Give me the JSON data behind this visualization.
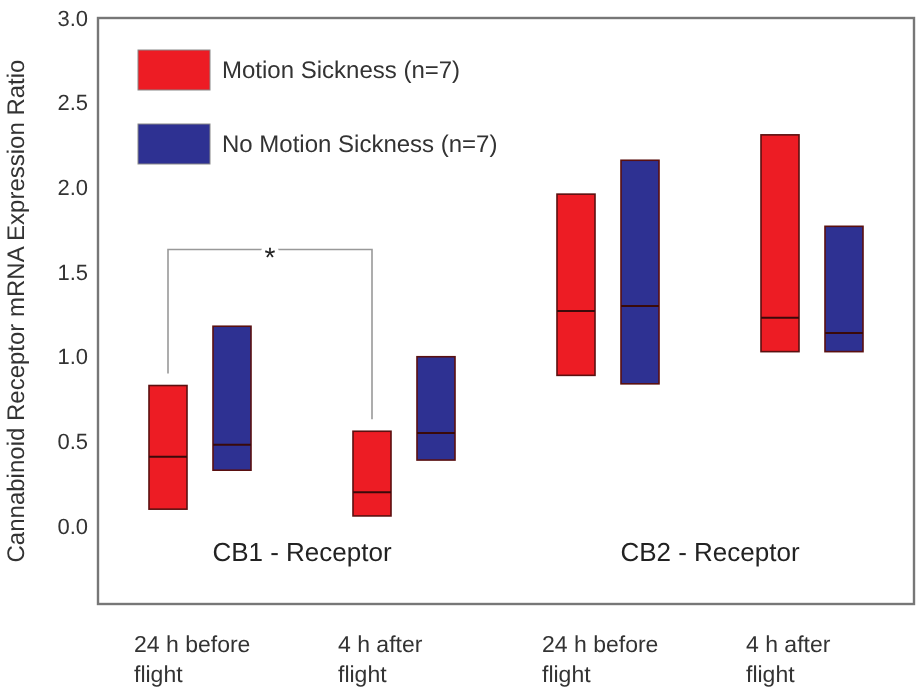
{
  "chart_data": {
    "type": "box",
    "ylabel": "Cannabinoid Receptor mRNA Expression Ratio",
    "categories": [
      "24 h before flight",
      "4 h after flight",
      "24 h before flight",
      "4 h after flight"
    ],
    "ylim": [
      -0.46,
      3.0
    ],
    "yticks": [
      {
        "value": 0,
        "label": "0.0"
      },
      {
        "value": 0.5,
        "label": "0.5"
      },
      {
        "value": 1,
        "label": "1.0"
      },
      {
        "value": 1.5,
        "label": "1.5"
      },
      {
        "value": 2,
        "label": "2.0"
      },
      {
        "value": 2.5,
        "label": "2.5"
      },
      {
        "value": 3,
        "label": "3.0"
      }
    ],
    "legend": "top left",
    "grid": false,
    "series": [
      {
        "name": "Motion Sickness (n=7)",
        "color": "#ed1c24",
        "boxes": [
          {
            "low": 0.1,
            "q1": 0.1,
            "median": 0.41,
            "q3": 0.83,
            "high": 0.83
          },
          {
            "low": 0.06,
            "q1": 0.06,
            "median": 0.2,
            "q3": 0.56,
            "high": 0.56
          },
          {
            "low": 0.89,
            "q1": 0.89,
            "median": 1.27,
            "q3": 1.96,
            "high": 1.96
          },
          {
            "low": 1.03,
            "q1": 1.03,
            "median": 1.23,
            "q3": 2.31,
            "high": 2.31
          }
        ]
      },
      {
        "name": "No Motion Sickness (n=7)",
        "color": "#2e3192",
        "boxes": [
          {
            "low": 0.33,
            "q1": 0.33,
            "median": 0.48,
            "q3": 1.18,
            "high": 1.18
          },
          {
            "low": 0.39,
            "q1": 0.39,
            "median": 0.55,
            "q3": 1.0,
            "high": 1.0
          },
          {
            "low": 0.84,
            "q1": 0.84,
            "median": 1.3,
            "q3": 2.16,
            "high": 2.16
          },
          {
            "low": 1.03,
            "q1": 1.03,
            "median": 1.14,
            "q3": 1.77,
            "high": 1.77
          }
        ]
      }
    ],
    "annotations": [
      "*",
      "CB1 - Receptor",
      "CB2 - Receptor"
    ]
  }
}
